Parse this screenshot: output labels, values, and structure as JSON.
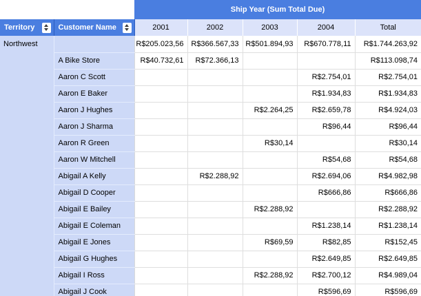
{
  "banner": {
    "title": "Ship Year (Sum Total Due)"
  },
  "columns": {
    "territory_label": "Territory",
    "customer_label": "Customer Name",
    "year_labels": [
      "2001",
      "2002",
      "2003",
      "2004",
      "Total"
    ]
  },
  "icons": {
    "sort": "up-down-sort-arrows"
  },
  "colors": {
    "header_blue": "#4a7ee0",
    "header_divider_blue": "#2c5cc0",
    "year_header_lavender": "#dce3fa",
    "group_column_blue": "#cdd9f7",
    "group_row_divider": "#e4ecfd",
    "grid_line_gray": "#dedede",
    "header_text": "#ffffff",
    "body_text": "#000000"
  },
  "table": {
    "rows": [
      {
        "territory": "Northwest",
        "customer": "",
        "values": [
          "R$205.023,56",
          "R$366.567,33",
          "R$501.894,93",
          "R$670.778,11",
          "R$1.744.263,92"
        ]
      },
      {
        "territory": "",
        "customer": "A Bike Store",
        "values": [
          "R$40.732,61",
          "R$72.366,13",
          "",
          "",
          "R$113.098,74"
        ]
      },
      {
        "territory": "",
        "customer": "Aaron C Scott",
        "values": [
          "",
          "",
          "",
          "R$2.754,01",
          "R$2.754,01"
        ]
      },
      {
        "territory": "",
        "customer": "Aaron E Baker",
        "values": [
          "",
          "",
          "",
          "R$1.934,83",
          "R$1.934,83"
        ]
      },
      {
        "territory": "",
        "customer": "Aaron J Hughes",
        "values": [
          "",
          "",
          "R$2.264,25",
          "R$2.659,78",
          "R$4.924,03"
        ]
      },
      {
        "territory": "",
        "customer": "Aaron J Sharma",
        "values": [
          "",
          "",
          "",
          "R$96,44",
          "R$96,44"
        ]
      },
      {
        "territory": "",
        "customer": "Aaron R Green",
        "values": [
          "",
          "",
          "R$30,14",
          "",
          "R$30,14"
        ]
      },
      {
        "territory": "",
        "customer": "Aaron W Mitchell",
        "values": [
          "",
          "",
          "",
          "R$54,68",
          "R$54,68"
        ]
      },
      {
        "territory": "",
        "customer": "Abigail A Kelly",
        "values": [
          "",
          "R$2.288,92",
          "",
          "R$2.694,06",
          "R$4.982,98"
        ]
      },
      {
        "territory": "",
        "customer": "Abigail D Cooper",
        "values": [
          "",
          "",
          "",
          "R$666,86",
          "R$666,86"
        ]
      },
      {
        "territory": "",
        "customer": "Abigail E Bailey",
        "values": [
          "",
          "",
          "R$2.288,92",
          "",
          "R$2.288,92"
        ]
      },
      {
        "territory": "",
        "customer": "Abigail E Coleman",
        "values": [
          "",
          "",
          "",
          "R$1.238,14",
          "R$1.238,14"
        ]
      },
      {
        "territory": "",
        "customer": "Abigail E Jones",
        "values": [
          "",
          "",
          "R$69,59",
          "R$82,85",
          "R$152,45"
        ]
      },
      {
        "territory": "",
        "customer": "Abigail G Hughes",
        "values": [
          "",
          "",
          "",
          "R$2.649,85",
          "R$2.649,85"
        ]
      },
      {
        "territory": "",
        "customer": "Abigail I Ross",
        "values": [
          "",
          "",
          "R$2.288,92",
          "R$2.700,12",
          "R$4.989,04"
        ]
      },
      {
        "territory": "",
        "customer": "Abigail J Cook",
        "values": [
          "",
          "",
          "",
          "R$596,69",
          "R$596,69"
        ]
      }
    ]
  }
}
